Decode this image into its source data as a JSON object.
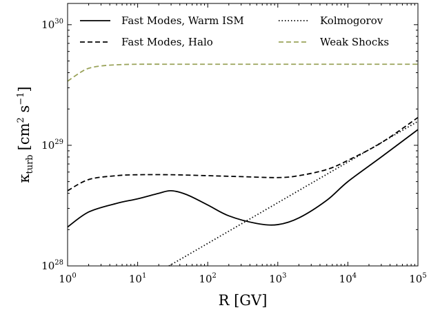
{
  "chart_data": {
    "type": "line",
    "xlabel": "R [GV]",
    "ylabel_parts": {
      "base": "κ",
      "sub": "turb",
      "units": "[cm",
      "sup1": "2",
      "mid": " s",
      "sup2": "−1",
      "end": "]"
    },
    "xscale": "log",
    "yscale": "log",
    "xlim": [
      1,
      100000
    ],
    "ylim": [
      1e+28,
      1.5e+30
    ],
    "x_ticks": [
      {
        "base": "10",
        "exp": "0"
      },
      {
        "base": "10",
        "exp": "1"
      },
      {
        "base": "10",
        "exp": "2"
      },
      {
        "base": "10",
        "exp": "3"
      },
      {
        "base": "10",
        "exp": "4"
      },
      {
        "base": "10",
        "exp": "5"
      }
    ],
    "y_ticks": [
      {
        "base": "10",
        "exp": "28"
      },
      {
        "base": "10",
        "exp": "29"
      },
      {
        "base": "10",
        "exp": "30"
      }
    ],
    "legend_position": "top",
    "series": [
      {
        "name": "Fast Modes, Warm ISM",
        "style": "solid",
        "color": "#000000",
        "x": [
          1,
          2,
          5,
          10,
          20,
          30,
          50,
          100,
          200,
          500,
          1000,
          2000,
          5000,
          10000,
          30000,
          100000
        ],
        "y": [
          2.1e+28,
          2.8e+28,
          3.3e+28,
          3.6e+28,
          4e+28,
          4.2e+28,
          3.9e+28,
          3.2e+28,
          2.6e+28,
          2.25e+28,
          2.2e+28,
          2.5e+28,
          3.5e+28,
          5e+28,
          8e+28,
          1.35e+29
        ]
      },
      {
        "name": "Fast Modes, Halo",
        "style": "dashed",
        "color": "#000000",
        "x": [
          1,
          2,
          5,
          10,
          30,
          100,
          300,
          1000,
          2000,
          5000,
          10000,
          30000,
          100000
        ],
        "y": [
          4.2e+28,
          5.2e+28,
          5.6e+28,
          5.7e+28,
          5.7e+28,
          5.6e+28,
          5.5e+28,
          5.4e+28,
          5.6e+28,
          6.3e+28,
          7.5e+28,
          1.05e+29,
          1.7e+29
        ]
      },
      {
        "name": "Kolmogorov",
        "style": "dotted",
        "color": "#000000",
        "x": [
          28,
          100000
        ],
        "y": [
          1e+28,
          1.58e+29
        ]
      },
      {
        "name": "Weak Shocks",
        "style": "dashed",
        "color": "#9aa35a",
        "x": [
          1,
          1.5,
          2,
          3,
          5,
          10,
          30,
          100,
          1000,
          10000,
          100000
        ],
        "y": [
          3.4e+29,
          4e+29,
          4.35e+29,
          4.55e+29,
          4.65e+29,
          4.7e+29,
          4.7e+29,
          4.7e+29,
          4.7e+29,
          4.7e+29,
          4.7e+29
        ]
      }
    ]
  }
}
